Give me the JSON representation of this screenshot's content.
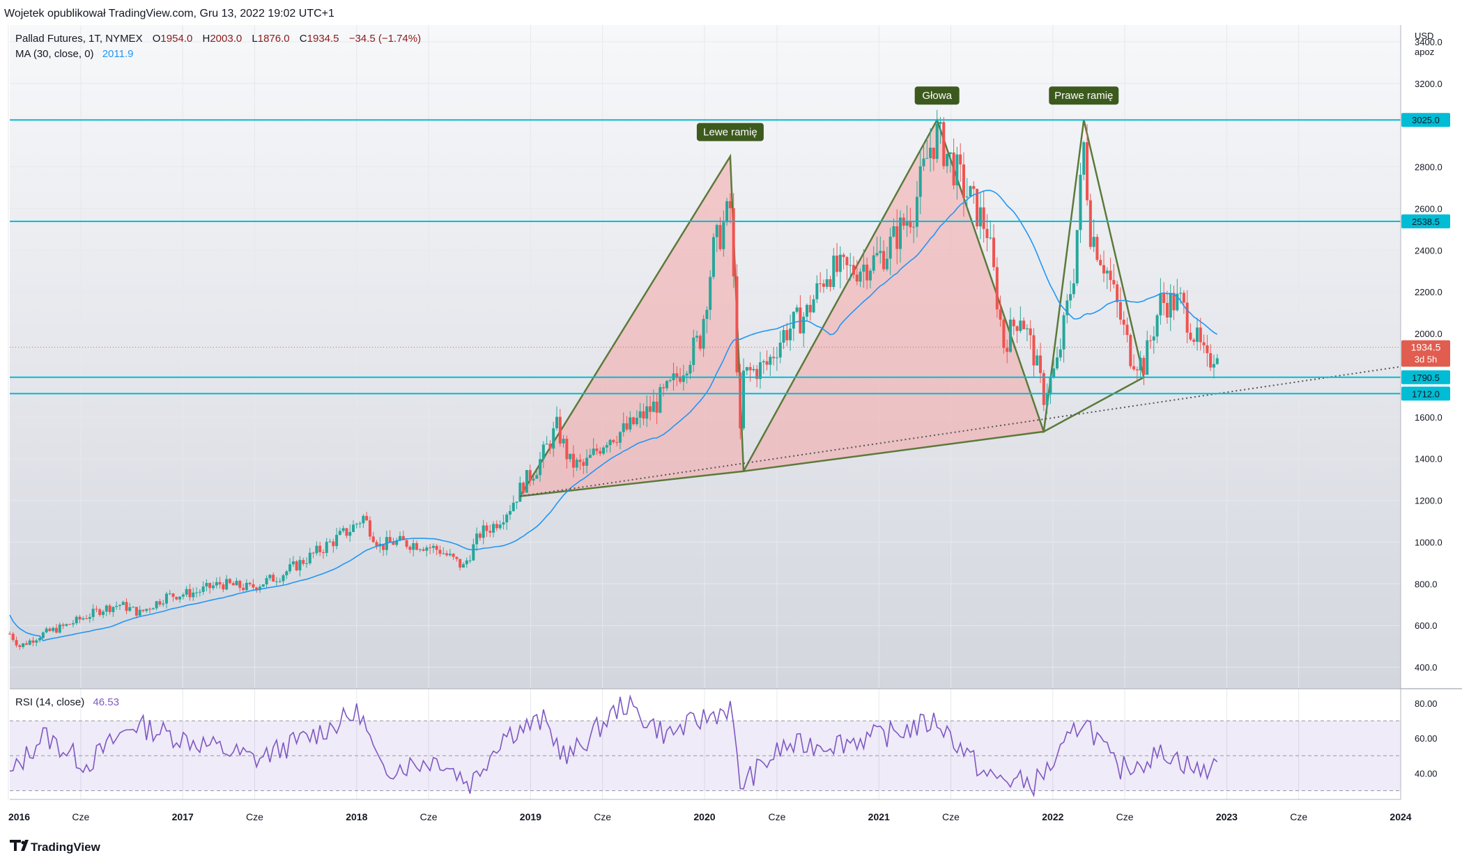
{
  "header": {
    "published": "Wojetek opublikował TradingView.com, Gru 13, 2022 19:02 UTC+1",
    "symbol": "Pallad Futures, 1T, NYMEX",
    "ohlc": {
      "o_label": "O",
      "o": "1954.0",
      "h_label": "H",
      "h": "2003.0",
      "l_label": "L",
      "l": "1876.0",
      "c_label": "C",
      "c": "1934.5",
      "change": "−34.5 (−1.74%)"
    },
    "ma_label": "MA (30, close, 0)",
    "ma_value": "2011.9"
  },
  "price_axis": {
    "currency": "USD",
    "scale_mode": "apoz",
    "ticks": [
      "3400.0",
      "3200.0",
      "2800.0",
      "2600.0",
      "2400.0",
      "2200.0",
      "2000.0",
      "1600.0",
      "1400.0",
      "1200.0",
      "1000.0",
      "800.0",
      "600.0",
      "400.0"
    ],
    "last_price": "1934.5",
    "countdown": "3d 5h"
  },
  "levels": [
    {
      "value": 3025.0,
      "label": "3025.0"
    },
    {
      "value": 2538.5,
      "label": "2538.5"
    },
    {
      "value": 1790.5,
      "label": "1790.5"
    },
    {
      "value": 1712.0,
      "label": "1712.0"
    }
  ],
  "pattern_labels": {
    "left_shoulder": "Lewe ramię",
    "head": "Głowa",
    "right_shoulder": "Prawe ramię"
  },
  "pattern_points": {
    "left_shoulder": [
      [
        "2018-12-10",
        1220
      ],
      [
        "2020-02-24",
        2850
      ],
      [
        "2020-03-23",
        1340
      ]
    ],
    "head": [
      [
        "2020-03-23",
        1340
      ],
      [
        "2021-05-03",
        3025
      ],
      [
        "2021-12-13",
        1530
      ]
    ],
    "right_shoulder": [
      [
        "2021-12-13",
        1530
      ],
      [
        "2022-03-07",
        3025
      ],
      [
        "2022-07-11",
        1790
      ]
    ],
    "neckline": [
      [
        "2018-12-10",
        1220
      ],
      [
        "2022-12-12",
        1712
      ]
    ]
  },
  "rsi": {
    "label": "RSI (14, close)",
    "value": "46.53",
    "ticks": [
      "80.00",
      "60.00",
      "40.00"
    ],
    "levels": [
      70,
      50,
      30
    ]
  },
  "time_axis": {
    "labels": [
      {
        "date": "2016-01-01",
        "text": "2016",
        "bold": true
      },
      {
        "date": "2016-06-01",
        "text": "Cze",
        "bold": false
      },
      {
        "date": "2017-01-01",
        "text": "2017",
        "bold": true
      },
      {
        "date": "2017-06-01",
        "text": "Cze",
        "bold": false
      },
      {
        "date": "2018-01-01",
        "text": "2018",
        "bold": true
      },
      {
        "date": "2018-06-01",
        "text": "Cze",
        "bold": false
      },
      {
        "date": "2019-01-01",
        "text": "2019",
        "bold": true
      },
      {
        "date": "2019-06-01",
        "text": "Cze",
        "bold": false
      },
      {
        "date": "2020-01-01",
        "text": "2020",
        "bold": true
      },
      {
        "date": "2020-06-01",
        "text": "Cze",
        "bold": false
      },
      {
        "date": "2021-01-01",
        "text": "2021",
        "bold": true
      },
      {
        "date": "2021-06-01",
        "text": "Cze",
        "bold": false
      },
      {
        "date": "2022-01-01",
        "text": "2022",
        "bold": true
      },
      {
        "date": "2022-06-01",
        "text": "Cze",
        "bold": false
      },
      {
        "date": "2023-01-01",
        "text": "2023",
        "bold": true
      },
      {
        "date": "2023-06-01",
        "text": "Cze",
        "bold": false
      },
      {
        "date": "2024-01-01",
        "text": "2024",
        "bold": true
      }
    ]
  },
  "footer": {
    "brand": "TradingView"
  },
  "colors": {
    "bull": "#26a69a",
    "bear": "#ef5350",
    "ma": "#2196f3",
    "level": "#00bcd4",
    "pattern_stroke": "#5b7a3a",
    "pattern_fill": "#f4a6a6",
    "label_bg": "#3d5a1e",
    "rsi": "#7e57c2",
    "last_price_bg": "#e05d4f"
  },
  "chart_data": {
    "type": "candlestick",
    "interval": "1 week",
    "x_range": [
      "2016-01-04",
      "2024-01-01"
    ],
    "ylim": [
      300,
      3480
    ],
    "y_scale": "linear",
    "series_anchor_closes": [
      [
        "2016-01-04",
        560
      ],
      [
        "2016-01-25",
        500
      ],
      [
        "2016-03-14",
        560
      ],
      [
        "2016-05-02",
        600
      ],
      [
        "2016-07-18",
        680
      ],
      [
        "2016-08-22",
        700
      ],
      [
        "2016-10-03",
        660
      ],
      [
        "2016-11-28",
        740
      ],
      [
        "2017-01-30",
        760
      ],
      [
        "2017-03-20",
        800
      ],
      [
        "2017-05-22",
        780
      ],
      [
        "2017-07-24",
        840
      ],
      [
        "2017-09-25",
        930
      ],
      [
        "2017-12-18",
        1060
      ],
      [
        "2018-01-15",
        1120
      ],
      [
        "2018-02-19",
        980
      ],
      [
        "2018-03-19",
        1000
      ],
      [
        "2018-05-14",
        990
      ],
      [
        "2018-06-25",
        960
      ],
      [
        "2018-08-13",
        880
      ],
      [
        "2018-09-17",
        1040
      ],
      [
        "2018-10-15",
        1080
      ],
      [
        "2018-11-19",
        1170
      ],
      [
        "2018-12-17",
        1280
      ],
      [
        "2019-01-14",
        1360
      ],
      [
        "2019-02-25",
        1550
      ],
      [
        "2019-03-25",
        1380
      ],
      [
        "2019-04-22",
        1360
      ],
      [
        "2019-06-10",
        1500
      ],
      [
        "2019-07-22",
        1540
      ],
      [
        "2019-09-16",
        1650
      ],
      [
        "2019-10-21",
        1740
      ],
      [
        "2019-12-23",
        1980
      ],
      [
        "2020-01-20",
        2400
      ],
      [
        "2020-02-24",
        2600
      ],
      [
        "2020-03-16",
        1500
      ],
      [
        "2020-03-23",
        1800
      ],
      [
        "2020-05-11",
        1850
      ],
      [
        "2020-06-15",
        2000
      ],
      [
        "2020-08-03",
        2100
      ],
      [
        "2020-09-14",
        2300
      ],
      [
        "2020-11-02",
        2300
      ],
      [
        "2020-12-21",
        2350
      ],
      [
        "2021-01-18",
        2400
      ],
      [
        "2021-03-15",
        2600
      ],
      [
        "2021-04-19",
        2900
      ],
      [
        "2021-05-03",
        2950
      ],
      [
        "2021-06-07",
        2800
      ],
      [
        "2021-06-28",
        2700
      ],
      [
        "2021-08-16",
        2500
      ],
      [
        "2021-09-20",
        1950
      ],
      [
        "2021-10-25",
        2100
      ],
      [
        "2021-11-22",
        1900
      ],
      [
        "2021-12-13",
        1700
      ],
      [
        "2022-01-10",
        1850
      ],
      [
        "2022-02-14",
        2300
      ],
      [
        "2022-03-07",
        2900
      ],
      [
        "2022-03-21",
        2500
      ],
      [
        "2022-04-25",
        2300
      ],
      [
        "2022-06-13",
        1900
      ],
      [
        "2022-07-11",
        1850
      ],
      [
        "2022-08-15",
        2150
      ],
      [
        "2022-09-26",
        2150
      ],
      [
        "2022-10-24",
        2000
      ],
      [
        "2022-11-21",
        1850
      ],
      [
        "2022-12-12",
        1934.5
      ]
    ],
    "moving_average": {
      "name": "MA (30, close, 0)",
      "last": 2011.9
    },
    "last_close": 1934.5,
    "rsi": {
      "name": "RSI (14, close)",
      "last": 46.53,
      "ylim": [
        25,
        88
      ],
      "anchor_values": [
        [
          "2016-01-04",
          38
        ],
        [
          "2016-03-14",
          62
        ],
        [
          "2016-06-13",
          45
        ],
        [
          "2016-09-19",
          68
        ],
        [
          "2017-01-02",
          60
        ],
        [
          "2017-06-05",
          48
        ],
        [
          "2017-10-02",
          62
        ],
        [
          "2018-01-08",
          75
        ],
        [
          "2018-02-19",
          42
        ],
        [
          "2018-06-25",
          48
        ],
        [
          "2018-08-27",
          34
        ],
        [
          "2018-11-05",
          62
        ],
        [
          "2019-01-28",
          70
        ],
        [
          "2019-03-18",
          48
        ],
        [
          "2019-07-15",
          80
        ],
        [
          "2019-10-14",
          62
        ],
        [
          "2020-02-24",
          78
        ],
        [
          "2020-03-16",
          33
        ],
        [
          "2020-06-15",
          55
        ],
        [
          "2020-10-19",
          58
        ],
        [
          "2021-01-18",
          62
        ],
        [
          "2021-05-03",
          70
        ],
        [
          "2021-08-16",
          38
        ],
        [
          "2021-11-22",
          34
        ],
        [
          "2022-01-10",
          48
        ],
        [
          "2022-03-07",
          72
        ],
        [
          "2022-05-16",
          42
        ],
        [
          "2022-08-29",
          52
        ],
        [
          "2022-11-07",
          40
        ],
        [
          "2022-12-12",
          46.53
        ]
      ]
    }
  }
}
